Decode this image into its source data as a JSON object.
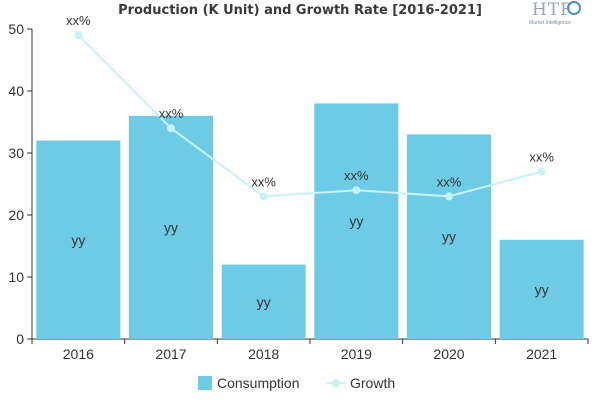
{
  "chart_data": {
    "type": "bar",
    "title": "Production (K Unit) and Growth Rate [2016-2021]",
    "categories": [
      "2016",
      "2017",
      "2018",
      "2019",
      "2020",
      "2021"
    ],
    "ylim": [
      0,
      50
    ],
    "yticks": [
      "0",
      "10",
      "20",
      "30",
      "40",
      "50"
    ],
    "grid": false,
    "legend_position": "bottom",
    "series": [
      {
        "name": "Consumption",
        "type": "bar",
        "color": "#6dcbe6",
        "values": [
          32,
          36,
          12,
          38,
          33,
          16
        ],
        "labels": [
          "yy",
          "yy",
          "yy",
          "yy",
          "yy",
          "yy"
        ]
      },
      {
        "name": "Growth",
        "type": "line",
        "color": "#c8f3f6",
        "values": [
          49,
          34,
          23,
          24,
          23,
          27
        ],
        "labels": [
          "xx%",
          "xx%",
          "xx%",
          "xx%",
          "xx%",
          "xx%"
        ]
      }
    ]
  },
  "logo": {
    "main_text": "HTF",
    "sub_text": "Market Intelligence"
  }
}
